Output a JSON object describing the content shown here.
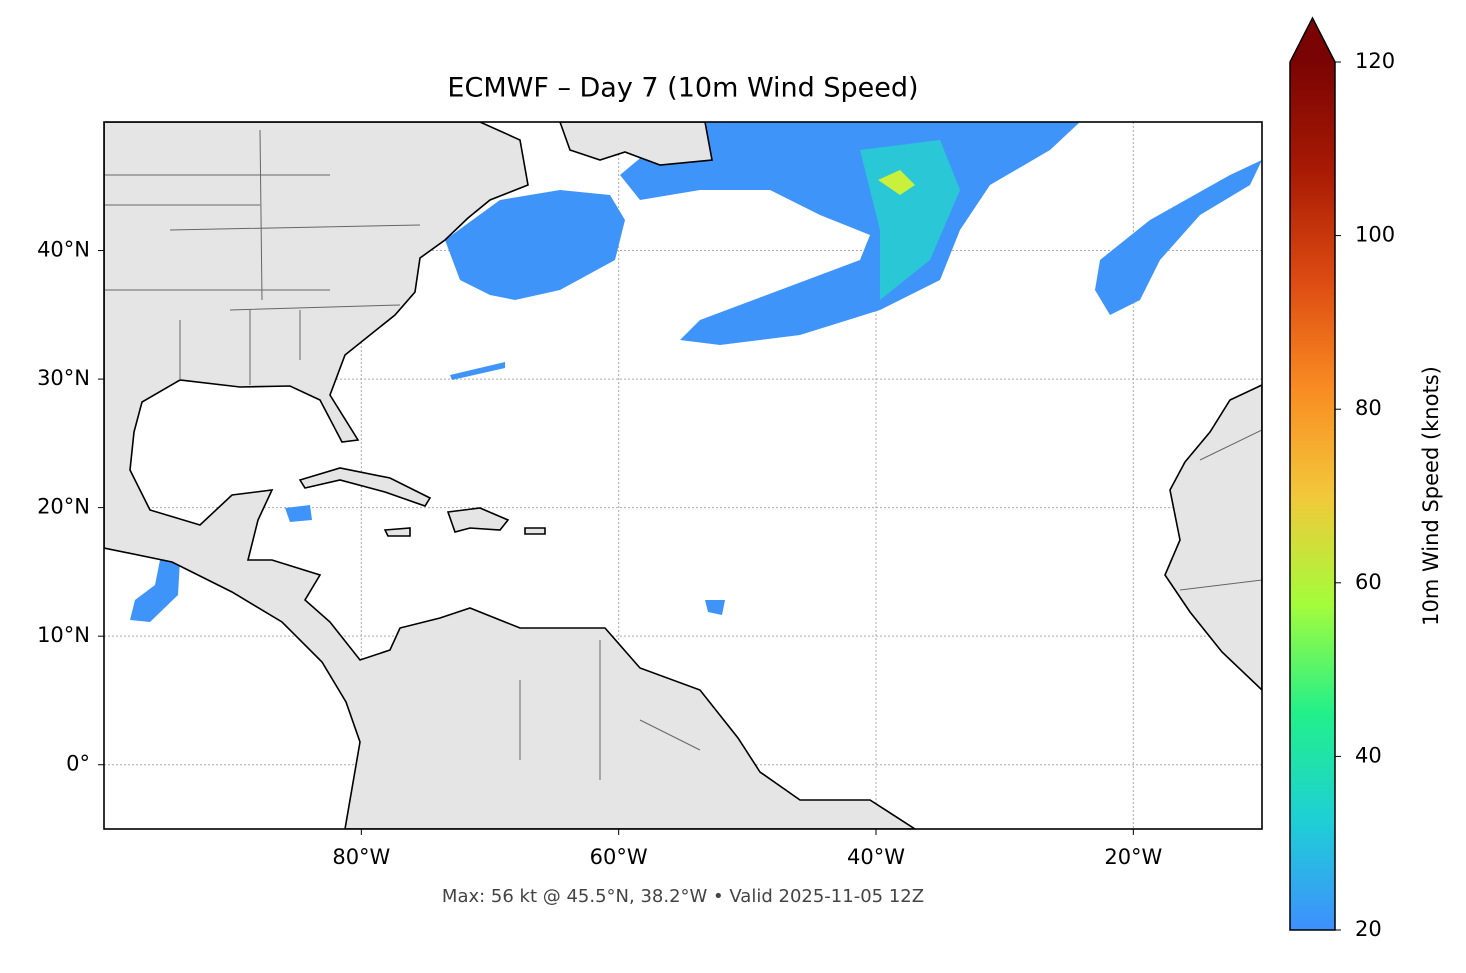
{
  "chart_data": {
    "type": "map",
    "title": "ECMWF – Day 7 (10m Wind Speed)",
    "footer": "Max: 56 kt @ 45.5°N, 38.2°W • Valid 2025-11-05 12Z",
    "xlim": [
      -100,
      -10
    ],
    "ylim": [
      -5,
      50
    ],
    "xticks": [
      {
        "value": -80,
        "label": "80°W"
      },
      {
        "value": -60,
        "label": "60°W"
      },
      {
        "value": -40,
        "label": "40°W"
      },
      {
        "value": -20,
        "label": "20°W"
      }
    ],
    "yticks": [
      {
        "value": 0,
        "label": "0°"
      },
      {
        "value": 10,
        "label": "10°N"
      },
      {
        "value": 20,
        "label": "20°N"
      },
      {
        "value": 30,
        "label": "30°N"
      },
      {
        "value": 40,
        "label": "40°N"
      }
    ],
    "grid": true,
    "colorbar": {
      "label": "10m Wind Speed (knots)",
      "lim": [
        20,
        120
      ],
      "ticks": [
        20,
        40,
        60,
        80,
        100,
        120
      ],
      "colors": [
        "#3f8ffe",
        "#1ecfd6",
        "#22f08a",
        "#a4fc3b",
        "#f2c83a",
        "#f98b22",
        "#dc4a12",
        "#a81a04",
        "#7a0403"
      ]
    }
  }
}
